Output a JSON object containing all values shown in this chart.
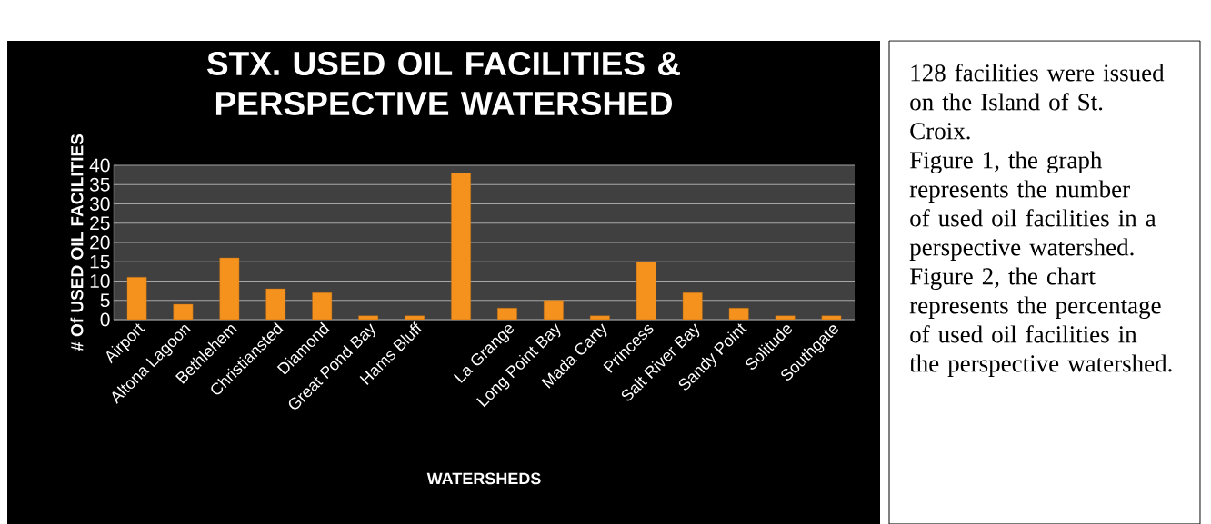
{
  "chart_data": {
    "type": "bar",
    "title": "STX. USED OIL FACILITIES & PERSPECTIVE WATERSHED",
    "xlabel": "WATERSHEDS",
    "ylabel": "# Of USED OIL FACILITIES",
    "categories": [
      "Airport",
      "Altona Lagoon",
      "Bethlehem",
      "Christiansted",
      "Diamond",
      "Great Pond Bay",
      "Hams Bluff",
      null,
      "La Grange",
      "Long Point Bay",
      "Mada  Carty",
      "Princess",
      "Salt River Bay",
      "Sandy Point",
      "Solitude",
      "Southgate"
    ],
    "values": [
      11,
      4,
      16,
      8,
      7,
      1,
      1,
      38,
      3,
      5,
      1,
      15,
      7,
      3,
      1,
      1
    ],
    "color": "#f5921e",
    "ylim": [
      0,
      40
    ],
    "yticks": [
      0,
      5,
      10,
      15,
      20,
      25,
      30,
      35,
      40
    ],
    "grid": "y",
    "annotations": [
      "128 facilities were issued on the Island of St. Croix.",
      "Figure 1, the graph represents the number of used oil facilities in a perspective watershed.",
      "Figure 2, the chart represents the percentage of used oil facilities in the perspective watershed."
    ]
  }
}
